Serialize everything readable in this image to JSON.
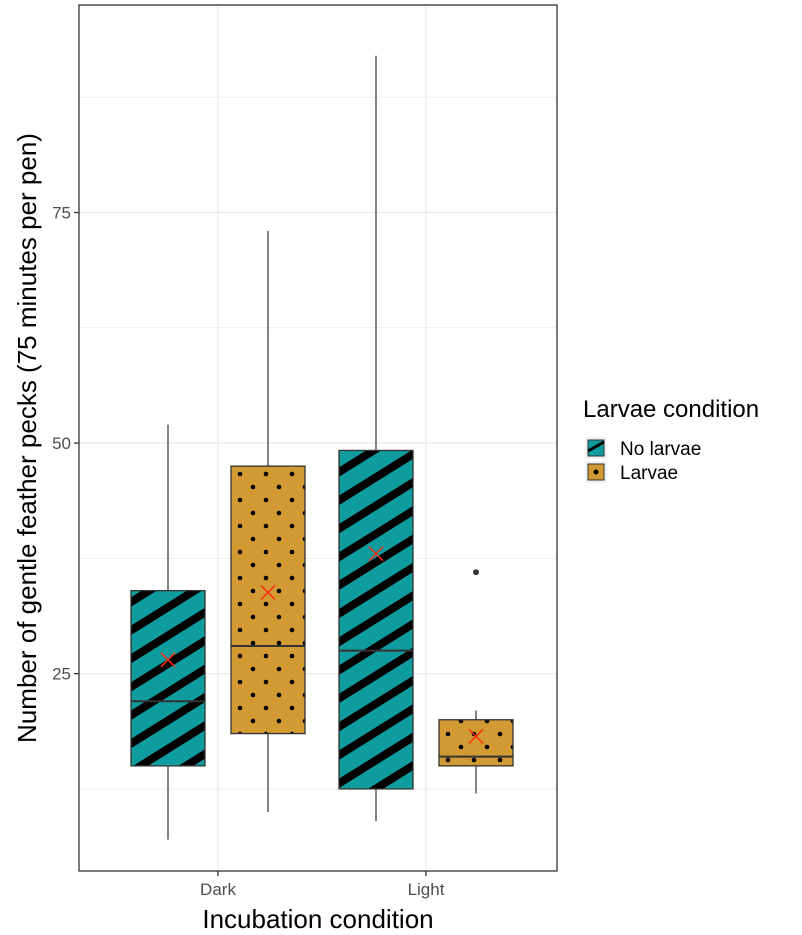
{
  "colors": {
    "no_larvae": "#0e9c9e",
    "larvae": "#d29a32",
    "mean_marker": "#ff2a10",
    "panel_border": "#333333",
    "grid": "#ebebeb"
  },
  "legend": {
    "title": "Larvae condition",
    "items": [
      {
        "label": "No larvae",
        "color": "#0e9c9e",
        "pattern": "stripe"
      },
      {
        "label": "Larvae",
        "color": "#d29a32",
        "pattern": "dots"
      }
    ]
  },
  "chart_data": {
    "type": "boxplot",
    "title": "",
    "xlabel": "Incubation condition",
    "ylabel": "Number of gentle feather pecks (75 minutes per pen)",
    "categories": [
      "Dark",
      "Light"
    ],
    "y_ticks": [
      25,
      50,
      75
    ],
    "ylim": [
      3.6,
      97.5
    ],
    "grid": true,
    "legend_position": "right",
    "series": [
      {
        "name": "No larvae",
        "color": "#0e9c9e",
        "pattern": "stripe",
        "boxes": [
          {
            "category": "Dark",
            "min": 7,
            "q1": 15,
            "median": 22,
            "q3": 34,
            "max": 52,
            "mean": 26.5,
            "outliers": []
          },
          {
            "category": "Light",
            "min": 9,
            "q1": 12.5,
            "median": 27.5,
            "q3": 49.2,
            "max": 92,
            "mean": 38,
            "outliers": []
          }
        ]
      },
      {
        "name": "Larvae",
        "color": "#d29a32",
        "pattern": "dots",
        "boxes": [
          {
            "category": "Dark",
            "min": 10,
            "q1": 18.5,
            "median": 28,
            "q3": 47.5,
            "max": 73,
            "mean": 33.8,
            "outliers": []
          },
          {
            "category": "Light",
            "min": 12,
            "q1": 15,
            "median": 16,
            "q3": 20,
            "max": 21,
            "mean": 18.2,
            "outliers": [
              36
            ]
          }
        ]
      }
    ]
  }
}
